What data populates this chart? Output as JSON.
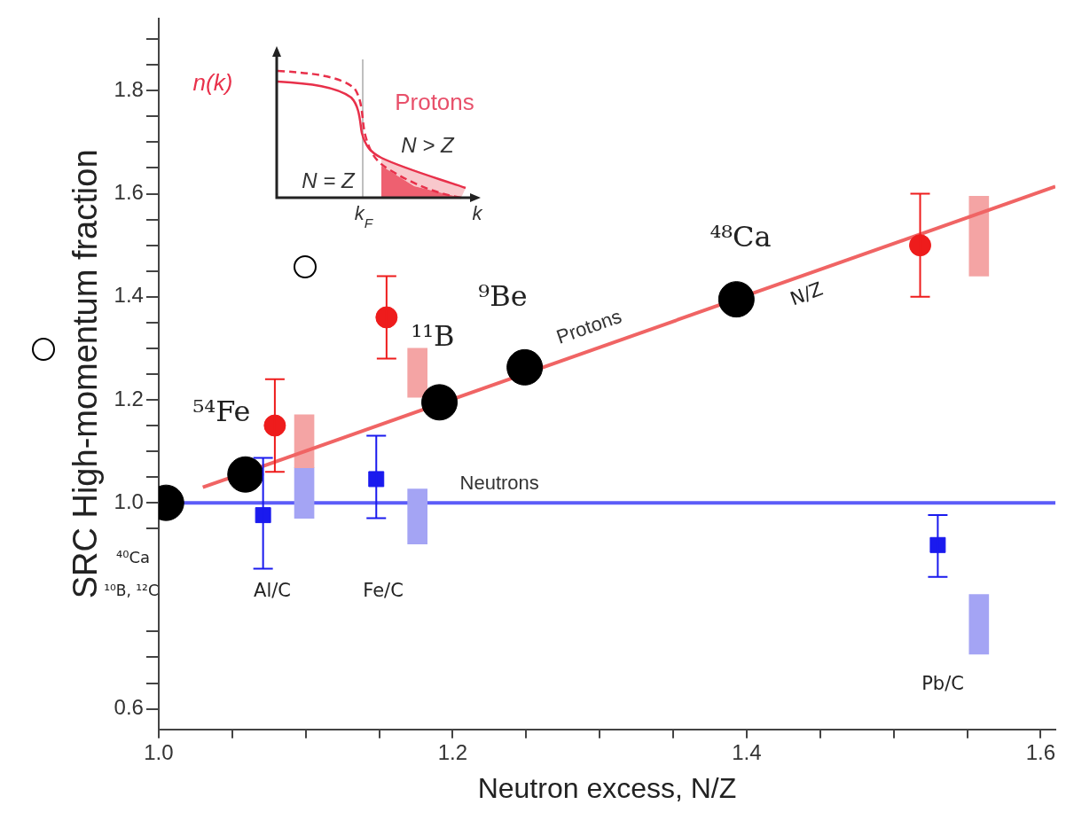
{
  "chart_data": {
    "type": "scatter",
    "xlabel": "Neutron excess, N/Z",
    "ylabel": "SRC High-momentum fraction",
    "xlim": [
      1.0,
      1.61
    ],
    "ylim": [
      0.56,
      1.94
    ],
    "xticks": [
      {
        "value": 1,
        "label": "1.0"
      },
      {
        "value": 1.05,
        "label": null
      },
      {
        "value": 1.1,
        "label": null
      },
      {
        "value": 1.15,
        "label": null
      },
      1.2,
      {
        "value": 1.25,
        "label": null
      },
      {
        "value": 1.3,
        "label": null
      },
      {
        "value": 1.35,
        "label": null
      },
      1.4,
      {
        "value": 1.45,
        "label": null
      },
      {
        "value": 1.5,
        "label": null
      },
      {
        "value": 1.55,
        "label": null
      },
      1.6
    ],
    "yticks": [
      0.6,
      {
        "value": 0.65,
        "label": null
      },
      {
        "value": 0.7,
        "label": null
      },
      {
        "value": 0.75,
        "label": null
      },
      {
        "value": 0.95,
        "label": null
      },
      {
        "value": 1,
        "label": "1.0"
      },
      {
        "value": 1.05,
        "label": null
      },
      {
        "value": 1.1,
        "label": null
      },
      {
        "value": 1.15,
        "label": null
      },
      1.2,
      {
        "value": 1.25,
        "label": null
      },
      {
        "value": 1.3,
        "label": null
      },
      {
        "value": 1.35,
        "label": null
      },
      1.4,
      {
        "value": 1.45,
        "label": null
      },
      {
        "value": 1.5,
        "label": null
      },
      {
        "value": 1.55,
        "label": null
      },
      1.6,
      {
        "value": 1.65,
        "label": null
      },
      {
        "value": 1.7,
        "label": null
      },
      {
        "value": 1.75,
        "label": null
      },
      1.8,
      {
        "value": 1.85,
        "label": null
      },
      {
        "value": 1.9,
        "label": null
      }
    ],
    "grid": false,
    "legend": false,
    "series": [
      {
        "type": "line",
        "name": "Protons",
        "color": "#f06464",
        "x": [
          1.03,
          1.61
        ],
        "values": [
          1.03,
          1.614
        ],
        "marker": "none",
        "line_style": "solid"
      },
      {
        "type": "bar",
        "color": "#f4a4a4",
        "x": [
          1.099,
          1.176,
          1.558
        ],
        "base": [
          1.068,
          1.205,
          1.44
        ],
        "values": [
          0.103,
          0.095,
          0.155
        ]
      },
      {
        "type": "bar",
        "color": "#a4a4f4",
        "x": [
          1.099,
          1.176,
          1.558
        ],
        "base": [
          0.97,
          0.92,
          0.706
        ],
        "values": [
          0.098,
          0.107,
          0.116
        ]
      },
      {
        "color": "#000000",
        "x": [
          1.005,
          1.059,
          1.191,
          1.249,
          1.393
        ],
        "values": [
          1.0,
          1.055,
          1.195,
          1.263,
          1.395
        ],
        "marker": "circle"
      },
      {
        "color": "#ee1c1c",
        "x": [
          1.079,
          1.155,
          1.518
        ],
        "values": [
          1.15,
          1.36,
          1.5
        ],
        "errors": [
          [
            1.06,
            1.24
          ],
          [
            1.28,
            1.44
          ],
          [
            1.4,
            1.6
          ]
        ],
        "marker": "circle"
      },
      {
        "color": "#1a1aee",
        "x": [
          1.071,
          1.148,
          1.53
        ],
        "values": [
          0.976,
          1.046,
          0.918
        ],
        "errors": [
          [
            0.872,
            1.087
          ],
          [
            0.97,
            1.13
          ],
          [
            0.856,
            0.976
          ]
        ],
        "marker": "square"
      }
    ],
    "ref_lines": [
      {
        "axis": "y",
        "value": 1,
        "label": "Neutrons",
        "color": "#5c5cf8"
      }
    ],
    "annotations": [
      "⁵⁴Fe",
      "¹¹B",
      "⁹Be",
      "⁴⁸Ca",
      "N/Z",
      "⁴⁰Ca",
      "¹⁰B, ¹²C",
      "Al/C",
      "Fe/C",
      "Pb/C",
      "n(k)",
      "Protons",
      "N > Z",
      "N = Z",
      "k$_{F}$",
      "k"
    ]
  }
}
